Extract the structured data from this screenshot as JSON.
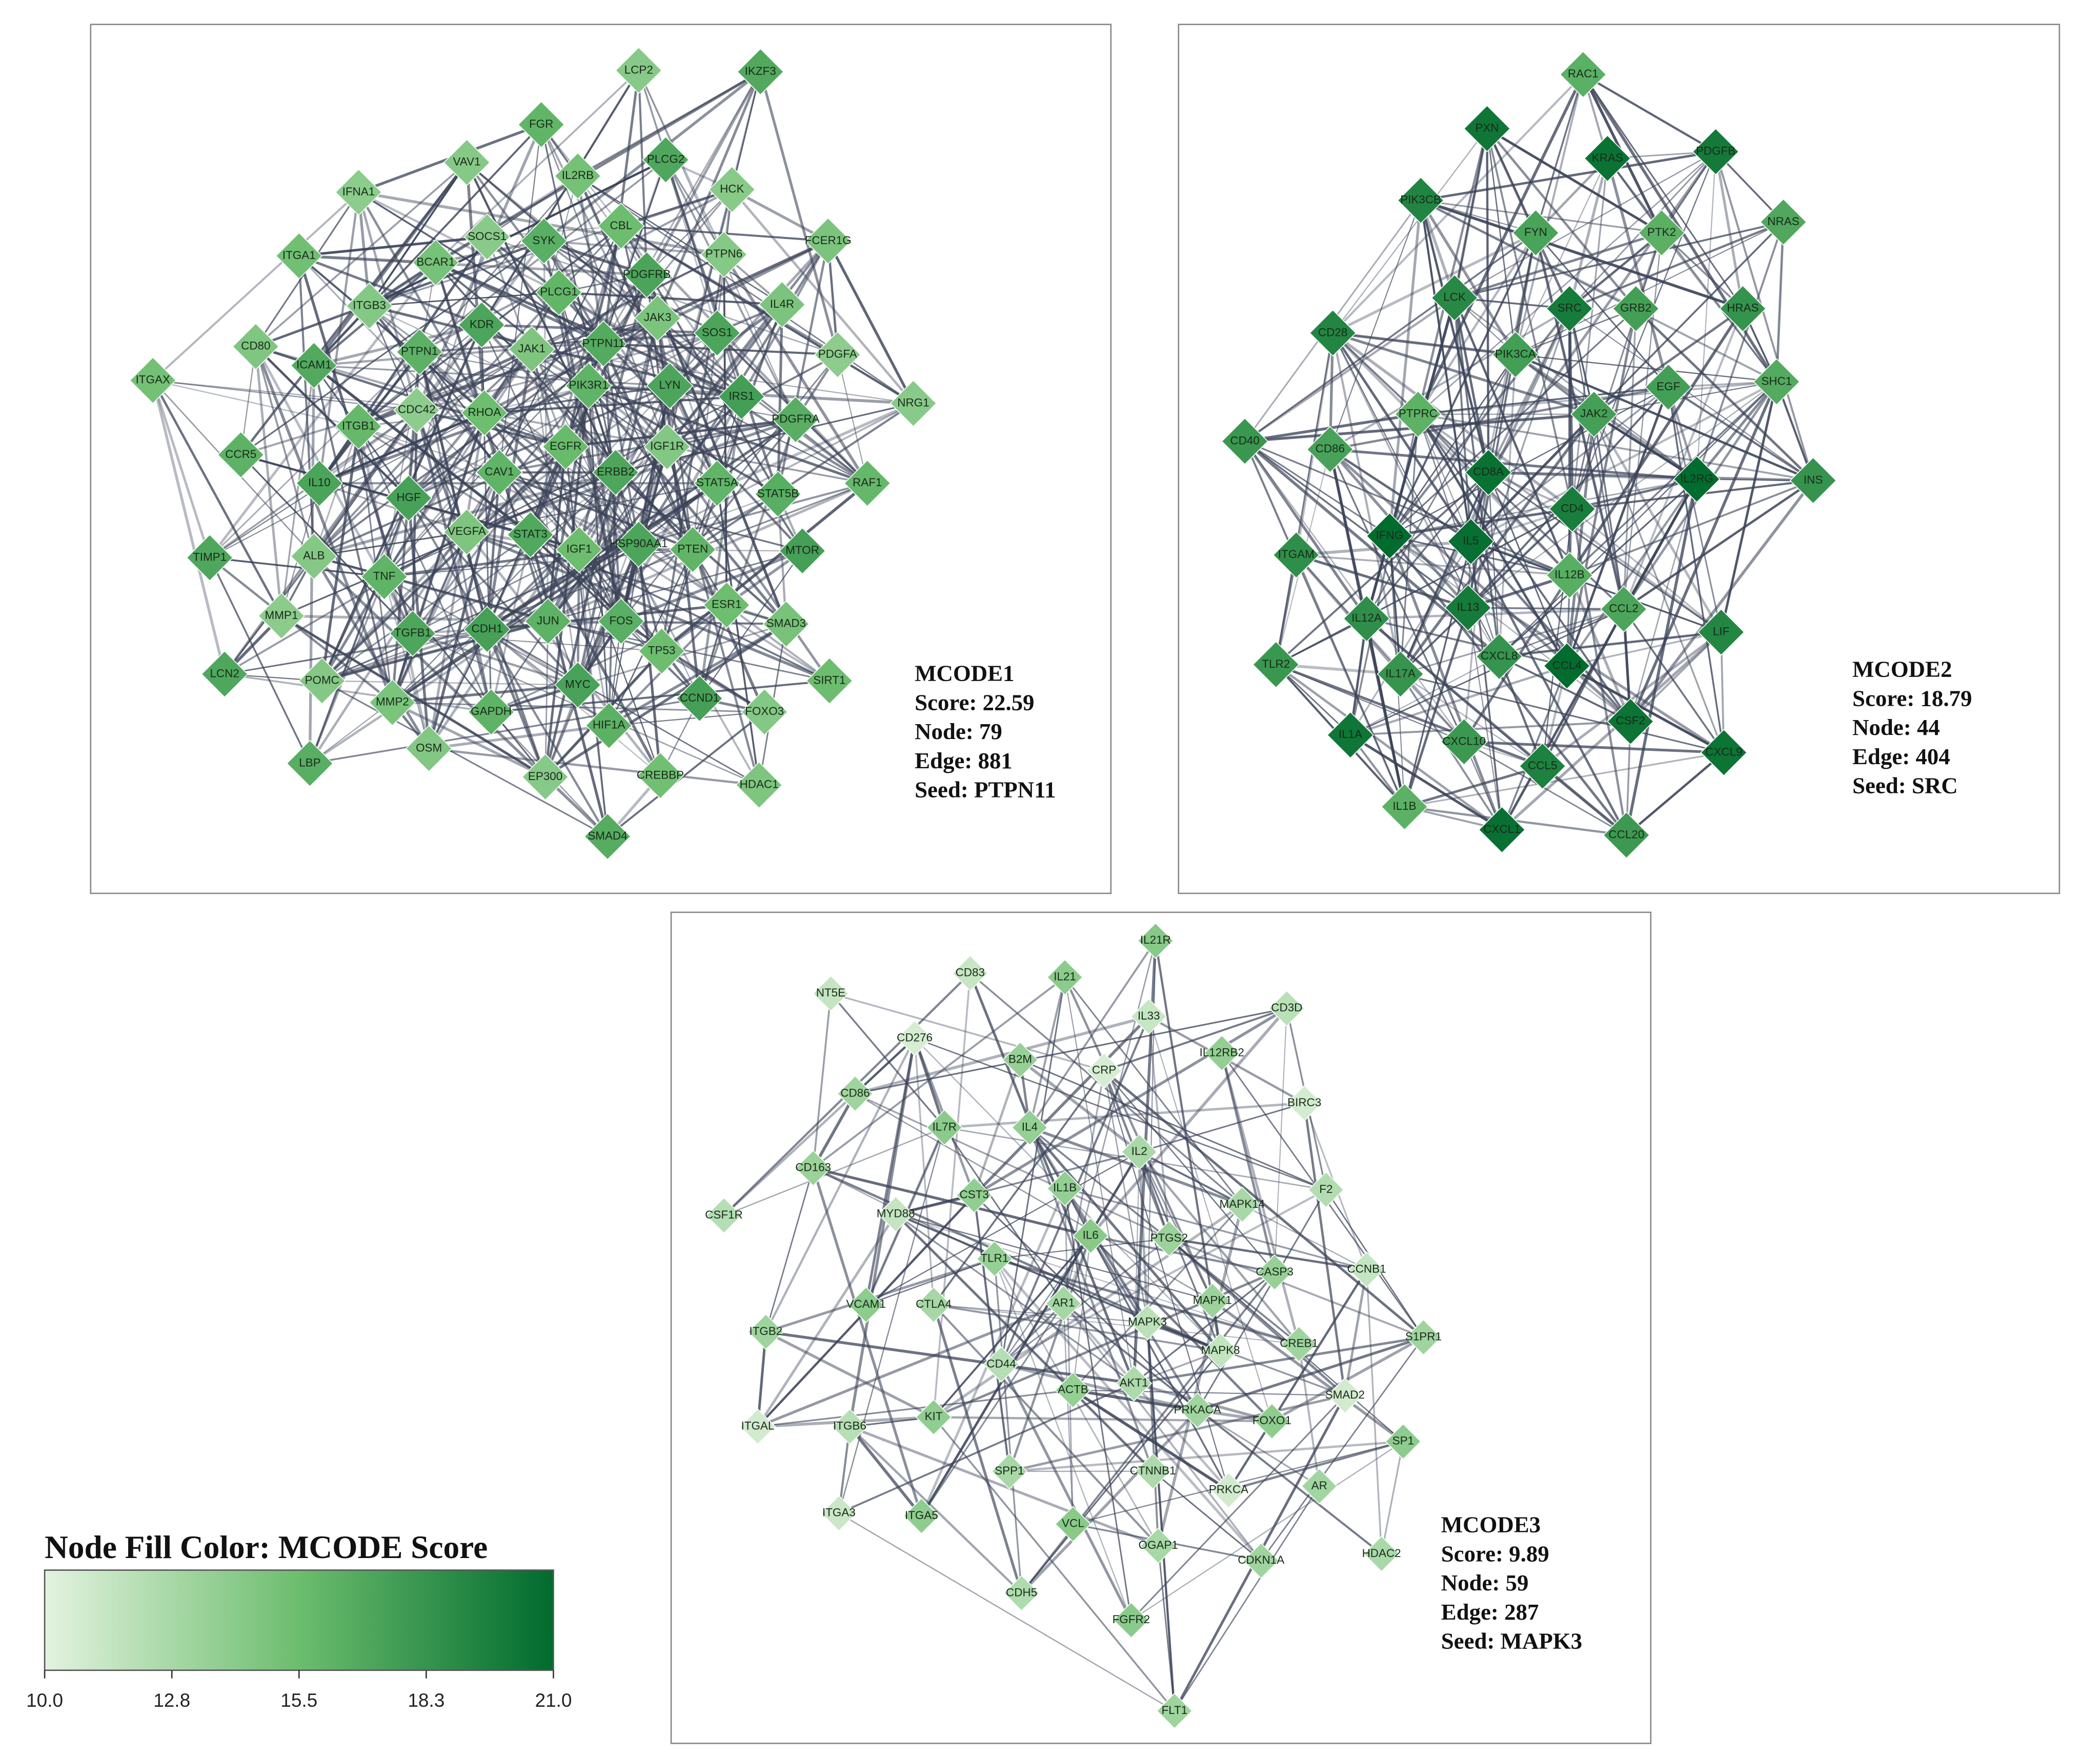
{
  "panels": [
    {
      "title": "MCODE1",
      "stats": [
        "Score: 22.59",
        "Node: 79",
        "Edge: 881",
        "Seed: PTPN11"
      ],
      "nodes": [
        "LCP2",
        "IKZF3",
        "FGR",
        "VAV1",
        "IL2RB",
        "PLCG2",
        "HCK",
        "IFNA1",
        "SOCS1",
        "SYK",
        "CBL",
        "PTPN6",
        "FCER1G",
        "ITGA1",
        "BCAR1",
        "PLCG1",
        "PDGFRB",
        "IL4R",
        "ITGB3",
        "KDR",
        "JAK3",
        "SOS1",
        "CD80",
        "ICAM1",
        "PTPN1",
        "JAK1",
        "PTPN11",
        "PDGFA",
        "ITGAX",
        "PIK3R1",
        "LYN",
        "IRS1",
        "NRG1",
        "CDC42",
        "RHOA",
        "PDGFRA",
        "ITGB1",
        "CCR5",
        "EGFR",
        "IGF1R",
        "ERBB2",
        "CAV1",
        "STAT5A",
        "RAF1",
        "IL10",
        "HGF",
        "STAT5B",
        "VEGFA",
        "STAT3",
        "TIMP1",
        "ALB",
        "IGF1",
        "HSP90AA1",
        "PTEN",
        "MTOR",
        "TNF",
        "MMP1",
        "TGFB1",
        "CDH1",
        "JUN",
        "FOS",
        "ESR1",
        "SMAD3",
        "TP53",
        "POMC",
        "LCN2",
        "MYC",
        "CCND1",
        "SIRT1",
        "GAPDH",
        "MMP2",
        "FOXO3",
        "HIF1A",
        "OSM",
        "LBP",
        "EP300",
        "CREBBP",
        "HDAC1",
        "SMAD4"
      ]
    },
    {
      "title": "MCODE2",
      "stats": [
        "Score: 18.79",
        "Node: 44",
        "Edge: 404",
        "Seed: SRC"
      ],
      "nodes": [
        "RAC1",
        "PXN",
        "KRAS",
        "PDGFB",
        "PIK3CB",
        "FYN",
        "PTK2",
        "NRAS",
        "LCK",
        "SRC",
        "GRB2",
        "HRAS",
        "CD28",
        "PIK3CA",
        "EGF",
        "SHC1",
        "PTPRC",
        "JAK2",
        "CD40",
        "CD86",
        "CD8A",
        "IL2RG",
        "INS",
        "CD4",
        "IFNG",
        "IL5",
        "ITGAM",
        "IL12B",
        "IL13",
        "IL12A",
        "CCL2",
        "LIF",
        "CXCL8",
        "CCL4",
        "TLR2",
        "IL17A",
        "CSF2",
        "IL1A",
        "CXCL10",
        "CCL5",
        "CXCL9",
        "IL1B",
        "CXCL1",
        "CCL20"
      ]
    },
    {
      "title": "MCODE3",
      "stats": [
        "Score: 9.89",
        "Node: 59",
        "Edge: 287",
        "Seed: MAPK3"
      ],
      "nodes": [
        "IL21R",
        "CD83",
        "IL21",
        "NT5E",
        "CD3D",
        "IL33",
        "CD276",
        "IL12RB2",
        "B2M",
        "CRP",
        "CD86",
        "BIRC3",
        "IL7R",
        "IL4",
        "IL2",
        "CD163",
        "F2",
        "IL1B",
        "CST3",
        "MAPK14",
        "CSF1R",
        "MYD88",
        "IL6",
        "PTGS2",
        "TLR1",
        "CASP3",
        "CCNB1",
        "VCAM1",
        "CTLA4",
        "AR1",
        "MAPK1",
        "MAPK3",
        "ITGB2",
        "S1PR1",
        "CREB1",
        "MAPK8",
        "CD44",
        "ACTB",
        "AKT1",
        "SMAD2",
        "KIT",
        "ITGAL",
        "ITGB6",
        "PRKACA",
        "FOXO1",
        "SP1",
        "SPP1",
        "CTNNB1",
        "PRKCA",
        "AR",
        "ITGA3",
        "ITGA5",
        "VCL",
        "OGAP1",
        "CDKN1A",
        "HDAC2",
        "CDH5",
        "FGFR2",
        "FLT1"
      ]
    }
  ],
  "legend": {
    "title": "Node Fill Color: MCODE Score",
    "ticks": [
      "10.0",
      "12.8",
      "15.5",
      "18.3",
      "21.0"
    ]
  }
}
